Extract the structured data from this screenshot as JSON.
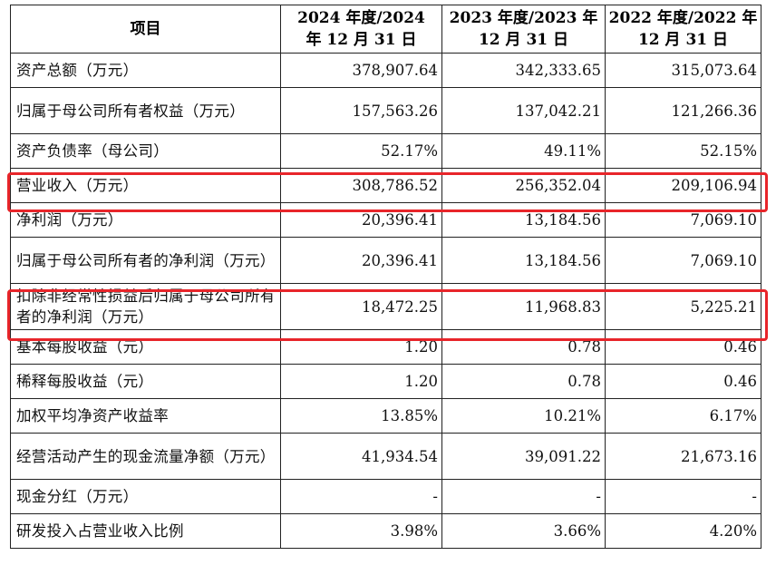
{
  "header": {
    "item": "项目",
    "col2024": [
      "2024 年度/2024",
      "年 12 月 31 日"
    ],
    "col2023": [
      "2023 年度/2023 年",
      "12 月 31 日"
    ],
    "col2022": [
      "2022 年度/2022 年",
      "12 月 31 日"
    ]
  },
  "rows": [
    {
      "label": "资产总额（万元）",
      "v2024": "378,907.64",
      "v2023": "342,333.65",
      "v2022": "315,073.64"
    },
    {
      "label": "归属于母公司所有者权益（万元）",
      "v2024": "157,563.26",
      "v2023": "137,042.21",
      "v2022": "121,266.36"
    },
    {
      "label": "资产负债率（母公司）",
      "v2024": "52.17%",
      "v2023": "49.11%",
      "v2022": "52.15%"
    },
    {
      "label": "营业收入（万元）",
      "v2024": "308,786.52",
      "v2023": "256,352.04",
      "v2022": "209,106.94"
    },
    {
      "label": "净利润（万元）",
      "v2024": "20,396.41",
      "v2023": "13,184.56",
      "v2022": "7,069.10"
    },
    {
      "label": "归属于母公司所有者的净利润（万元）",
      "v2024": "20,396.41",
      "v2023": "13,184.56",
      "v2022": "7,069.10"
    },
    {
      "label": "扣除非经常性损益后归属于母公司所有者的净利润（万元）",
      "v2024": "18,472.25",
      "v2023": "11,968.83",
      "v2022": "5,225.21"
    },
    {
      "label": "基本每股收益（元）",
      "v2024": "1.20",
      "v2023": "0.78",
      "v2022": "0.46"
    },
    {
      "label": "稀释每股收益（元）",
      "v2024": "1.20",
      "v2023": "0.78",
      "v2022": "0.46"
    },
    {
      "label": "加权平均净资产收益率",
      "v2024": "13.85%",
      "v2023": "10.21%",
      "v2022": "6.17%"
    },
    {
      "label": "经营活动产生的现金流量净额（万元）",
      "v2024": "41,934.54",
      "v2023": "39,091.22",
      "v2022": "21,673.16"
    },
    {
      "label": "现金分红（万元）",
      "v2024": "-",
      "v2023": "-",
      "v2022": "-"
    },
    {
      "label": "研发投入占营业收入比例",
      "v2024": "3.98%",
      "v2023": "3.66%",
      "v2022": "4.20%"
    }
  ],
  "highlight_color": "#e8252a"
}
